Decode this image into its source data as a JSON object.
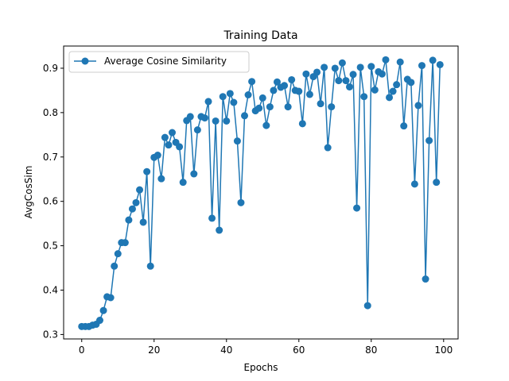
{
  "chart_data": {
    "type": "line",
    "title": "Training Data",
    "xlabel": "Epochs",
    "ylabel": "AvgCosSim",
    "xlim": [
      -5,
      104
    ],
    "ylim": [
      0.29,
      0.95
    ],
    "xticks": [
      0,
      20,
      40,
      60,
      80,
      100
    ],
    "yticks": [
      0.3,
      0.4,
      0.5,
      0.6,
      0.7,
      0.8,
      0.9
    ],
    "grid": false,
    "legend_position": "top-left",
    "series": [
      {
        "name": "Average Cosine Similarity",
        "color": "#1f77b4",
        "marker": "circle",
        "x": [
          0,
          1,
          2,
          3,
          4,
          5,
          6,
          7,
          8,
          9,
          10,
          11,
          12,
          13,
          14,
          15,
          16,
          17,
          18,
          19,
          20,
          21,
          22,
          23,
          24,
          25,
          26,
          27,
          28,
          29,
          30,
          31,
          32,
          33,
          34,
          35,
          36,
          37,
          38,
          39,
          40,
          41,
          42,
          43,
          44,
          45,
          46,
          47,
          48,
          49,
          50,
          51,
          52,
          53,
          54,
          55,
          56,
          57,
          58,
          59,
          60,
          61,
          62,
          63,
          64,
          65,
          66,
          67,
          68,
          69,
          70,
          71,
          72,
          73,
          74,
          75,
          76,
          77,
          78,
          79,
          80,
          81,
          82,
          83,
          84,
          85,
          86,
          87,
          88,
          89,
          90,
          91,
          92,
          93,
          94,
          95,
          96,
          97,
          98,
          99
        ],
        "values": [
          0.318,
          0.318,
          0.318,
          0.321,
          0.323,
          0.332,
          0.354,
          0.385,
          0.383,
          0.454,
          0.482,
          0.507,
          0.507,
          0.558,
          0.583,
          0.597,
          0.626,
          0.553,
          0.667,
          0.454,
          0.699,
          0.704,
          0.651,
          0.744,
          0.727,
          0.755,
          0.733,
          0.723,
          0.643,
          0.782,
          0.791,
          0.662,
          0.761,
          0.791,
          0.788,
          0.825,
          0.562,
          0.781,
          0.535,
          0.836,
          0.781,
          0.843,
          0.823,
          0.736,
          0.597,
          0.793,
          0.84,
          0.87,
          0.804,
          0.81,
          0.833,
          0.771,
          0.813,
          0.85,
          0.869,
          0.857,
          0.861,
          0.813,
          0.874,
          0.85,
          0.848,
          0.775,
          0.887,
          0.841,
          0.881,
          0.891,
          0.82,
          0.902,
          0.721,
          0.813,
          0.9,
          0.872,
          0.912,
          0.872,
          0.858,
          0.886,
          0.585,
          0.902,
          0.836,
          0.365,
          0.904,
          0.851,
          0.892,
          0.887,
          0.919,
          0.834,
          0.848,
          0.863,
          0.914,
          0.77,
          0.875,
          0.868,
          0.639,
          0.816,
          0.906,
          0.425,
          0.737,
          0.918,
          0.643,
          0.908
        ]
      }
    ]
  }
}
